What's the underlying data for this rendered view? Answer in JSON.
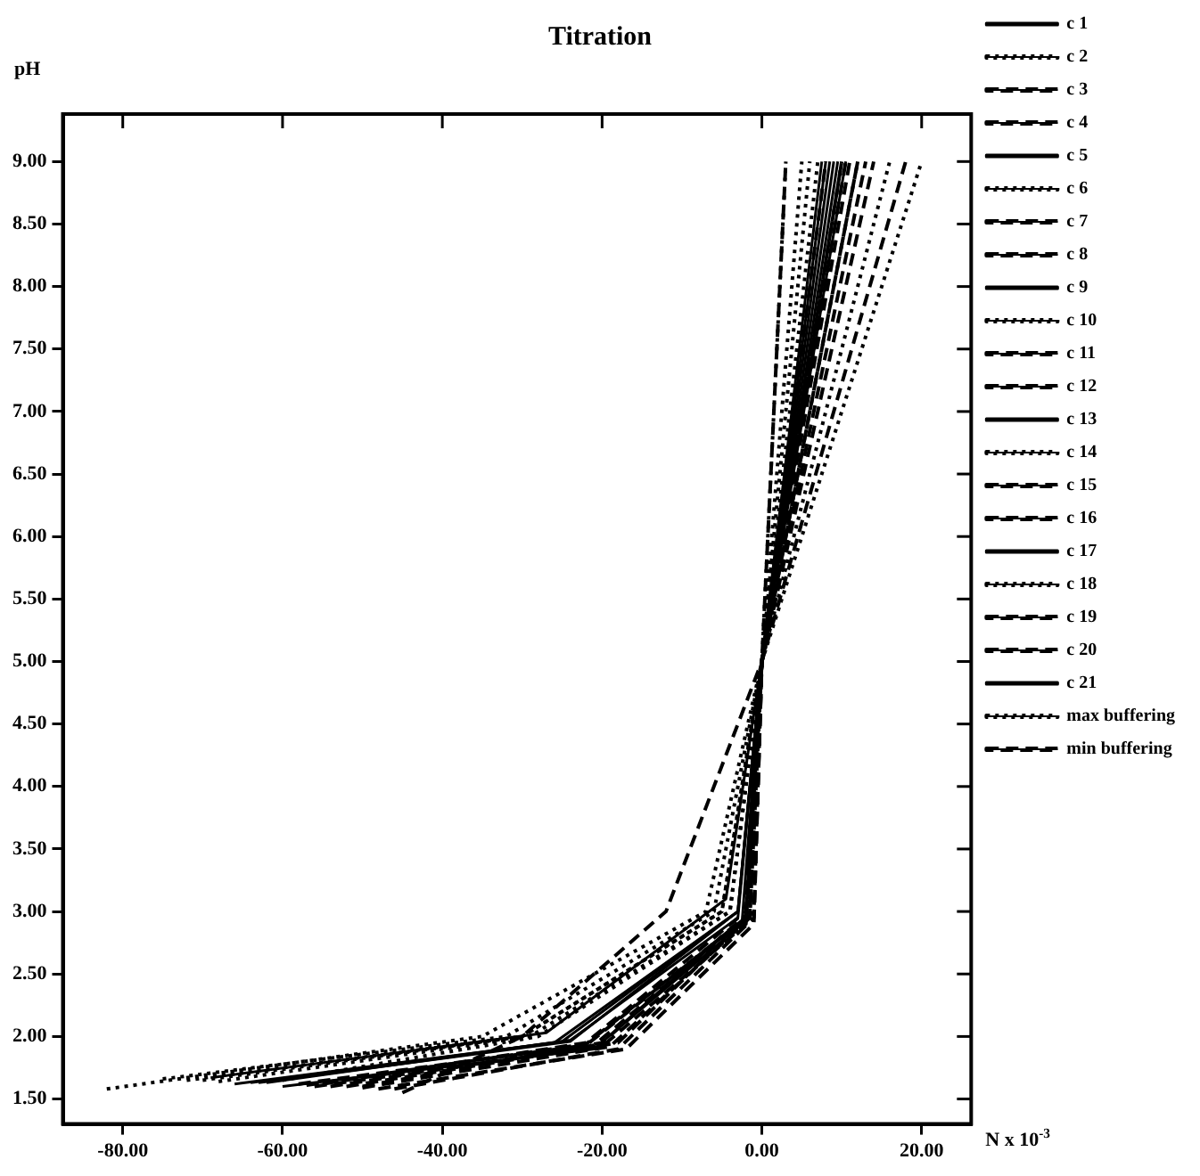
{
  "chart_data": {
    "type": "line",
    "title": "Titration",
    "xlabel": "N x 10$^{-3}$",
    "ylabel": "pH",
    "xlim": [
      -87.5,
      26.2
    ],
    "ylim": [
      1.3,
      9.38
    ],
    "xticks": [
      {
        "value": -80,
        "label": "-80.00"
      },
      {
        "value": -60,
        "label": "-60.00"
      },
      {
        "value": -40,
        "label": "-40.00"
      },
      {
        "value": -20,
        "label": "-20.00"
      },
      {
        "value": 0,
        "label": "0.00"
      },
      {
        "value": 20,
        "label": "20.00"
      }
    ],
    "yticks": [
      {
        "value": 1.5,
        "label": "1.50"
      },
      {
        "value": 2,
        "label": "2.00"
      },
      {
        "value": 2.5,
        "label": "2.50"
      },
      {
        "value": 3,
        "label": "3.00"
      },
      {
        "value": 3.5,
        "label": "3.50"
      },
      {
        "value": 4,
        "label": "4.00"
      },
      {
        "value": 4.5,
        "label": "4.50"
      },
      {
        "value": 5,
        "label": "5.00"
      },
      {
        "value": 5.5,
        "label": "5.50"
      },
      {
        "value": 6,
        "label": "6.00"
      },
      {
        "value": 6.5,
        "label": "6.50"
      },
      {
        "value": 7,
        "label": "7.00"
      },
      {
        "value": 7.5,
        "label": "7.50"
      },
      {
        "value": 8,
        "label": "8.00"
      },
      {
        "value": 8.5,
        "label": "8.50"
      },
      {
        "value": 9,
        "label": "9.00"
      }
    ],
    "grid": false,
    "legend": "right",
    "marker": "none",
    "series": [
      {
        "name": "c 1",
        "color": "#000000",
        "line_style": "solid",
        "x": [
          -69,
          -27,
          -4.5,
          0,
          10.5
        ],
        "values": [
          1.67,
          2.03,
          3.1,
          5.0,
          9.0
        ]
      },
      {
        "name": "c 2",
        "color": "#000000",
        "line_style": "dotted",
        "x": [
          -60,
          -28,
          -4,
          0,
          3
        ],
        "values": [
          1.65,
          2.0,
          3.0,
          5.0,
          9.0
        ]
      },
      {
        "name": "c 3",
        "color": "#000000",
        "line_style": "dashed",
        "x": [
          -55,
          -22,
          -2,
          0,
          12
        ],
        "values": [
          1.62,
          1.95,
          3.0,
          5.0,
          9.0
        ]
      },
      {
        "name": "c 4",
        "color": "#000000",
        "line_style": "dashed",
        "x": [
          -50,
          -20,
          -1.5,
          0,
          10
        ],
        "values": [
          1.6,
          1.95,
          3.0,
          5.0,
          9.0
        ]
      },
      {
        "name": "c 5",
        "color": "#000000",
        "line_style": "solid",
        "x": [
          -62,
          -24,
          -3,
          0,
          9.5
        ],
        "values": [
          1.63,
          1.97,
          2.95,
          5.0,
          9.0
        ]
      },
      {
        "name": "c 6",
        "color": "#000000",
        "line_style": "dotted",
        "x": [
          -70,
          -30,
          -5,
          0,
          5
        ],
        "values": [
          1.65,
          2.0,
          3.0,
          5.0,
          9.0
        ]
      },
      {
        "name": "c 7",
        "color": "#000000",
        "line_style": "dashed",
        "x": [
          -58,
          -22,
          -2,
          0,
          8
        ],
        "values": [
          1.62,
          1.93,
          2.95,
          5.0,
          9.0
        ]
      },
      {
        "name": "c 8",
        "color": "#000000",
        "line_style": "dashed",
        "x": [
          -52,
          -18,
          -1,
          0,
          3
        ],
        "values": [
          1.6,
          1.95,
          3.0,
          5.0,
          9.0
        ]
      },
      {
        "name": "c 9",
        "color": "#000000",
        "line_style": "solid",
        "x": [
          -64,
          -25,
          -3,
          0,
          8.5
        ],
        "values": [
          1.63,
          1.96,
          3.0,
          5.0,
          9.0
        ]
      },
      {
        "name": "c 10",
        "color": "#000000",
        "line_style": "dotted",
        "x": [
          -75,
          -32,
          -6,
          0,
          16
        ],
        "values": [
          1.66,
          2.0,
          3.0,
          5.0,
          9.0
        ]
      },
      {
        "name": "c 11",
        "color": "#000000",
        "line_style": "dashed",
        "x": [
          -56,
          -20,
          -2,
          0,
          10.5
        ],
        "values": [
          1.6,
          1.92,
          2.9,
          5.0,
          9.0
        ]
      },
      {
        "name": "c 12",
        "color": "#000000",
        "line_style": "dashed",
        "x": [
          -48,
          -17,
          -1,
          0,
          14
        ],
        "values": [
          1.58,
          1.9,
          2.9,
          5.0,
          9.0
        ]
      },
      {
        "name": "c 13",
        "color": "#000000",
        "line_style": "solid",
        "x": [
          -66,
          -26,
          -3,
          0,
          9
        ],
        "values": [
          1.62,
          1.95,
          3.0,
          5.0,
          9.0
        ]
      },
      {
        "name": "c 14",
        "color": "#000000",
        "line_style": "dotted",
        "x": [
          -68,
          -29,
          -4,
          0,
          7
        ],
        "values": [
          1.64,
          2.0,
          3.0,
          5.0,
          9.0
        ]
      },
      {
        "name": "c 15",
        "color": "#000000",
        "line_style": "dashed",
        "x": [
          -54,
          -21,
          -2,
          0,
          11
        ],
        "values": [
          1.6,
          1.93,
          2.95,
          5.0,
          9.0
        ]
      },
      {
        "name": "c 16",
        "color": "#000000",
        "line_style": "dashed",
        "x": [
          -46,
          -18,
          -1,
          0,
          13
        ],
        "values": [
          1.58,
          1.9,
          2.95,
          5.0,
          9.0
        ]
      },
      {
        "name": "c 17",
        "color": "#000000",
        "line_style": "solid",
        "x": [
          -63,
          -24,
          -3,
          0,
          8
        ],
        "values": [
          1.63,
          1.96,
          3.0,
          5.0,
          9.0
        ]
      },
      {
        "name": "c 18",
        "color": "#000000",
        "line_style": "dotted",
        "x": [
          -72,
          -30,
          -5,
          0,
          6
        ],
        "values": [
          1.65,
          2.0,
          3.0,
          5.0,
          9.0
        ]
      },
      {
        "name": "c 19",
        "color": "#000000",
        "line_style": "dashed",
        "x": [
          -57,
          -22,
          -2,
          0,
          10
        ],
        "values": [
          1.61,
          1.94,
          2.95,
          5.0,
          9.0
        ]
      },
      {
        "name": "c 20",
        "color": "#000000",
        "line_style": "dashed",
        "x": [
          -50,
          -19,
          -1.5,
          0,
          12
        ],
        "values": [
          1.59,
          1.92,
          2.95,
          5.0,
          9.0
        ]
      },
      {
        "name": "c 21",
        "color": "#000000",
        "line_style": "solid",
        "x": [
          -60,
          -21,
          -2.5,
          0,
          7.5
        ],
        "values": [
          1.6,
          1.9,
          2.9,
          5.0,
          9.0
        ]
      },
      {
        "name": "max buffering",
        "color": "#000000",
        "line_style": "dotted",
        "x": [
          -82,
          -35,
          -7,
          0,
          20
        ],
        "values": [
          1.58,
          2.0,
          3.0,
          5.0,
          9.0
        ]
      },
      {
        "name": "min buffering",
        "color": "#000000",
        "line_style": "dashed",
        "x": [
          -45,
          -30,
          -12,
          0,
          18
        ],
        "values": [
          1.55,
          2.0,
          3.0,
          5.0,
          9.0
        ]
      }
    ]
  }
}
